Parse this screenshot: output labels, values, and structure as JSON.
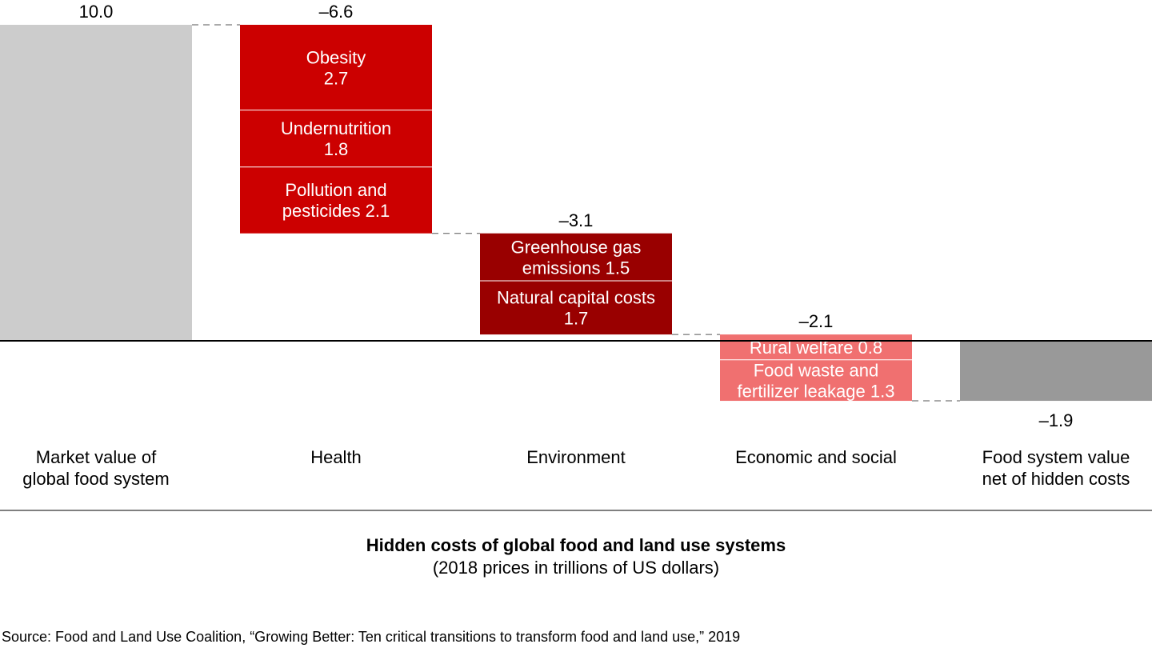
{
  "chart_data": {
    "type": "waterfall",
    "unit": "trillions of US dollars",
    "categories": [
      "Market value of\nglobal food system",
      "Health",
      "Environment",
      "Economic and social",
      "Food system value\nnet of hidden costs"
    ],
    "start": {
      "category_index": 0,
      "value": 10.0,
      "label": "10.0",
      "color": "#cccccc"
    },
    "steps": [
      {
        "category_index": 1,
        "total": -6.6,
        "label": "–6.6",
        "color": "#cc0000",
        "components": [
          {
            "name": "Obesity",
            "value": 2.7,
            "label": "Obesity\n2.7"
          },
          {
            "name": "Undernutrition",
            "value": 1.8,
            "label": "Undernutrition\n1.8"
          },
          {
            "name": "Pollution and pesticides",
            "value": 2.1,
            "label": "Pollution and\npesticides 2.1"
          }
        ]
      },
      {
        "category_index": 2,
        "total": -3.1,
        "label": "–3.1",
        "color": "#990000",
        "components": [
          {
            "name": "Greenhouse gas emissions",
            "value": 1.5,
            "label": "Greenhouse gas\nemissions 1.5"
          },
          {
            "name": "Natural capital costs",
            "value": 1.7,
            "label": "Natural capital costs\n1.7"
          }
        ]
      },
      {
        "category_index": 3,
        "total": -2.1,
        "label": "–2.1",
        "color": "#f07070",
        "components": [
          {
            "name": "Rural welfare",
            "value": 0.8,
            "label": "Rural welfare 0.8"
          },
          {
            "name": "Food waste and fertilizer leakage",
            "value": 1.3,
            "label": "Food waste and\nfertilizer leakage 1.3"
          }
        ]
      }
    ],
    "end": {
      "category_index": 4,
      "value": -1.9,
      "label": "–1.9",
      "color": "#999999"
    },
    "title": "Hidden costs of global food and land use systems",
    "subtitle": "(2018 prices in trillions of US dollars)",
    "grid": false,
    "legend": "none"
  },
  "source": "Source: Food and Land Use Coalition, “Growing Better: Ten critical transitions to transform food and land use,” 2019"
}
